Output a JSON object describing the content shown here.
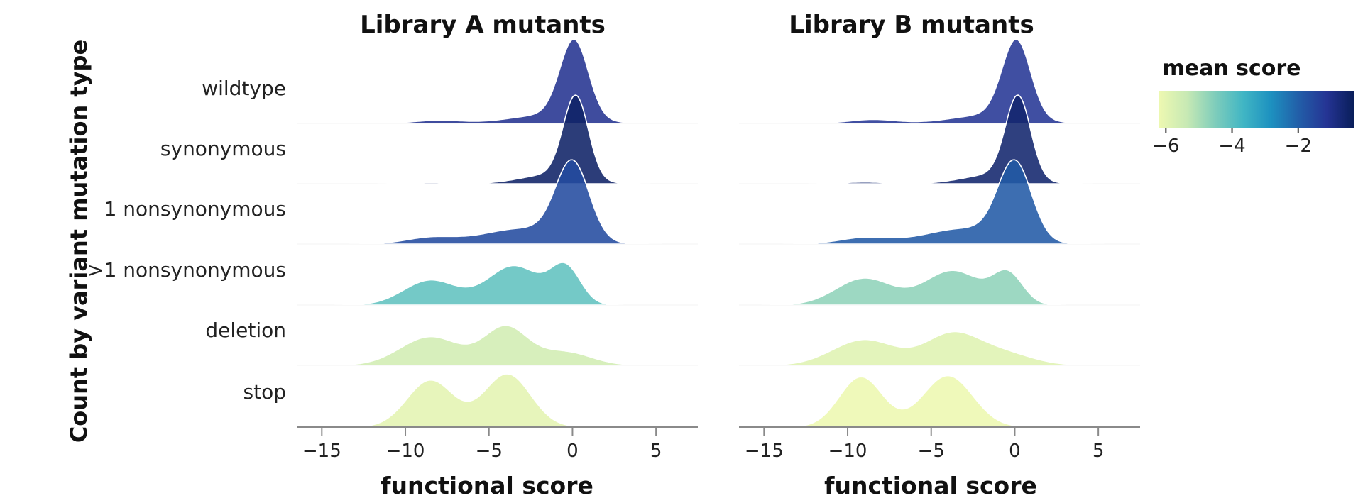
{
  "chart_data": {
    "type": "area",
    "subtype": "ridgeline density",
    "ylabel": "Count by variant mutation type",
    "xlabel": "functional score",
    "xlim": [
      -16.5,
      7.5
    ],
    "xticks": [
      -15,
      -10,
      -5,
      0,
      5
    ],
    "xtick_labels": [
      "−15",
      "−10",
      "−5",
      "0",
      "5"
    ],
    "categories": [
      "wildtype",
      "synonymous",
      "1 nonsynonymous",
      ">1 nonsynonymous",
      "deletion",
      "stop"
    ],
    "legend": {
      "title": "mean score",
      "ticks": [
        -6,
        -4,
        -2
      ],
      "tick_labels": [
        "−6",
        "−4",
        "−2"
      ],
      "range": [
        -6.2,
        -0.3
      ],
      "colors": [
        "#edf8b1",
        "#c7e9b4",
        "#7fcdbb",
        "#41b6c4",
        "#1d91c0",
        "#225ea8",
        "#253494",
        "#081d58"
      ],
      "placement": "right"
    },
    "panels": [
      {
        "title": "Library A mutants",
        "series": [
          {
            "name": "wildtype",
            "mean_score": -1.1,
            "peak": 0.95,
            "components": [
              {
                "mu": 0.1,
                "sigma": 0.85,
                "w": 1.0
              },
              {
                "mu": -1.5,
                "sigma": 2.2,
                "w": 0.11
              },
              {
                "mu": -8.0,
                "sigma": 1.4,
                "w": 0.04
              }
            ]
          },
          {
            "name": "synonymous",
            "mean_score": -0.5,
            "peak": 1.0,
            "components": [
              {
                "mu": 0.2,
                "sigma": 0.75,
                "w": 1.0
              },
              {
                "mu": -1.3,
                "sigma": 1.8,
                "w": 0.11
              },
              {
                "mu": -8.5,
                "sigma": 1.2,
                "w": 0.015
              }
            ]
          },
          {
            "name": "1 nonsynonymous",
            "mean_score": -1.6,
            "peak": 0.95,
            "components": [
              {
                "mu": 0.0,
                "sigma": 1.0,
                "w": 1.0
              },
              {
                "mu": -3.0,
                "sigma": 2.4,
                "w": 0.2
              },
              {
                "mu": -8.5,
                "sigma": 1.5,
                "w": 0.08
              }
            ]
          },
          {
            "name": ">1 nonsynonymous",
            "mean_score": -4.1,
            "peak": 0.48,
            "components": [
              {
                "mu": -8.5,
                "sigma": 1.6,
                "w": 0.38
              },
              {
                "mu": -3.5,
                "sigma": 1.6,
                "w": 0.6
              },
              {
                "mu": -0.4,
                "sigma": 0.9,
                "w": 0.55
              }
            ]
          },
          {
            "name": "deletion",
            "mean_score": -5.6,
            "peak": 0.45,
            "components": [
              {
                "mu": -8.5,
                "sigma": 1.8,
                "w": 0.55
              },
              {
                "mu": -4.0,
                "sigma": 1.3,
                "w": 0.72
              },
              {
                "mu": -0.5,
                "sigma": 1.6,
                "w": 0.26
              }
            ]
          },
          {
            "name": "stop",
            "mean_score": -6.0,
            "peak": 0.6,
            "components": [
              {
                "mu": -8.5,
                "sigma": 1.4,
                "w": 0.75
              },
              {
                "mu": -3.9,
                "sigma": 1.4,
                "w": 0.85
              }
            ]
          }
        ]
      },
      {
        "title": "Library B mutants",
        "series": [
          {
            "name": "wildtype",
            "mean_score": -1.2,
            "peak": 0.95,
            "components": [
              {
                "mu": 0.1,
                "sigma": 0.85,
                "w": 1.0
              },
              {
                "mu": -1.5,
                "sigma": 2.2,
                "w": 0.11
              },
              {
                "mu": -8.5,
                "sigma": 1.4,
                "w": 0.05
              }
            ]
          },
          {
            "name": "synonymous",
            "mean_score": -0.6,
            "peak": 1.0,
            "components": [
              {
                "mu": 0.2,
                "sigma": 0.75,
                "w": 1.0
              },
              {
                "mu": -1.3,
                "sigma": 1.8,
                "w": 0.11
              },
              {
                "mu": -9.0,
                "sigma": 1.2,
                "w": 0.02
              }
            ]
          },
          {
            "name": "1 nonsynonymous",
            "mean_score": -1.9,
            "peak": 0.95,
            "components": [
              {
                "mu": 0.0,
                "sigma": 1.0,
                "w": 1.0
              },
              {
                "mu": -3.0,
                "sigma": 2.4,
                "w": 0.2
              },
              {
                "mu": -9.0,
                "sigma": 1.5,
                "w": 0.08
              }
            ]
          },
          {
            "name": ">1 nonsynonymous",
            "mean_score": -4.7,
            "peak": 0.4,
            "components": [
              {
                "mu": -9.0,
                "sigma": 1.7,
                "w": 0.45
              },
              {
                "mu": -3.7,
                "sigma": 1.7,
                "w": 0.58
              },
              {
                "mu": -0.4,
                "sigma": 0.9,
                "w": 0.5
              }
            ]
          },
          {
            "name": "deletion",
            "mean_score": -5.9,
            "peak": 0.38,
            "components": [
              {
                "mu": -9.0,
                "sigma": 1.9,
                "w": 0.62
              },
              {
                "mu": -3.8,
                "sigma": 1.6,
                "w": 0.72
              },
              {
                "mu": -0.8,
                "sigma": 1.8,
                "w": 0.3
              }
            ]
          },
          {
            "name": "stop",
            "mean_score": -6.2,
            "peak": 0.58,
            "components": [
              {
                "mu": -9.2,
                "sigma": 1.3,
                "w": 0.78
              },
              {
                "mu": -4.0,
                "sigma": 1.5,
                "w": 0.8
              }
            ]
          }
        ]
      }
    ]
  }
}
